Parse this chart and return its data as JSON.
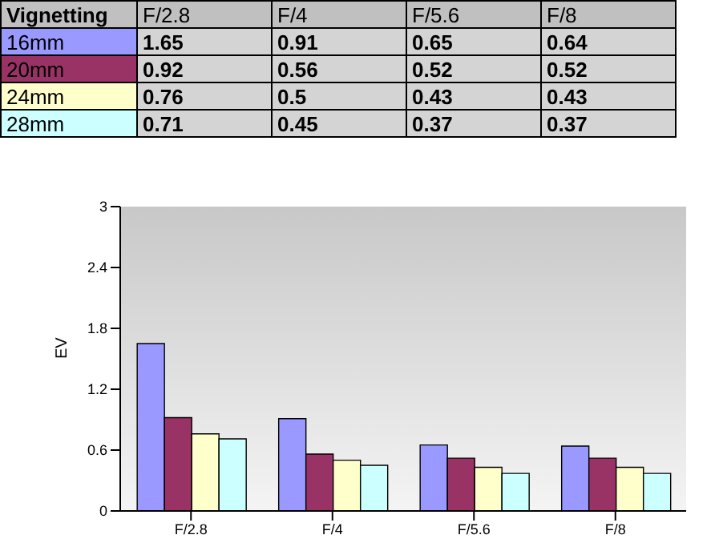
{
  "chart_data": {
    "type": "bar",
    "title": "Vignetting",
    "ylabel": "EV",
    "categories": [
      "F/2.8",
      "F/4",
      "F/5.6",
      "F/8"
    ],
    "series": [
      {
        "name": "16mm",
        "color": "#9999ff",
        "values": [
          1.65,
          0.91,
          0.65,
          0.64
        ]
      },
      {
        "name": "20mm",
        "color": "#993366",
        "values": [
          0.92,
          0.56,
          0.52,
          0.52
        ]
      },
      {
        "name": "24mm",
        "color": "#ffffcc",
        "values": [
          0.76,
          0.5,
          0.43,
          0.43
        ]
      },
      {
        "name": "28mm",
        "color": "#ccffff",
        "values": [
          0.71,
          0.45,
          0.37,
          0.37
        ]
      }
    ],
    "ylim": [
      0,
      3
    ],
    "yticks": [
      0,
      0.6,
      1.2,
      1.8,
      2.4,
      3
    ],
    "data_labels": true,
    "grid": false
  }
}
